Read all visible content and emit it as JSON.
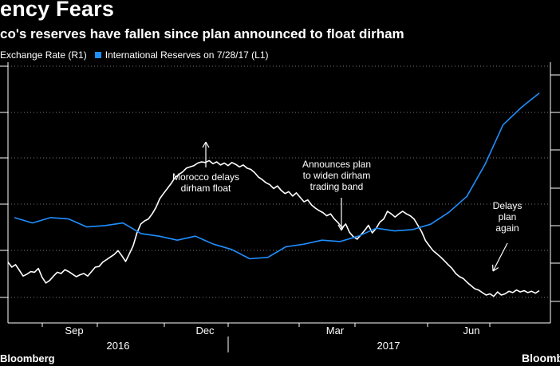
{
  "title": "ency Fears",
  "subtitle": "co's reserves have fallen since plan announced to float dirham",
  "legend": [
    {
      "label": "Exchange Rate (R1)",
      "color": "#ffffff"
    },
    {
      "label": "International Reserves on 7/28/17 (L1)",
      "color": "#1f8fff"
    }
  ],
  "brand_left": "Bloomberg",
  "brand_right": "Bloomberg",
  "annotations": [
    {
      "lines": [
        "Morocco delays",
        "dirham float"
      ]
    },
    {
      "lines": [
        "Announces plan",
        "to widen dirham",
        "trading band"
      ]
    },
    {
      "lines": [
        "Delays",
        "plan",
        "again"
      ]
    }
  ],
  "chart_data": {
    "type": "line",
    "x_ticks": [
      "Sep",
      "Dec",
      "Mar",
      "Jun"
    ],
    "x_years": [
      "2016",
      "2017"
    ],
    "series": [
      {
        "name": "Exchange Rate (R1)",
        "axis": "right",
        "color": "#ffffff",
        "x": [
          0,
          1,
          2,
          3,
          4,
          5,
          6,
          7,
          8,
          9,
          10,
          11,
          12,
          13,
          14,
          15,
          16,
          17,
          18,
          19,
          20,
          21,
          22,
          23,
          24,
          25,
          26,
          27,
          28,
          29,
          30,
          31,
          32,
          33,
          34,
          35,
          36,
          37,
          38,
          39,
          40,
          41,
          42,
          43,
          44,
          45,
          46,
          47,
          48,
          49,
          50,
          51,
          52,
          53,
          54,
          55,
          56,
          57,
          58,
          59,
          60,
          61,
          62,
          63,
          64,
          65,
          66,
          67,
          68,
          69,
          70,
          71,
          72,
          73,
          74,
          75,
          76,
          77,
          78,
          79,
          80,
          81,
          82,
          83,
          84,
          85,
          86,
          87,
          88,
          89,
          90,
          91,
          92,
          93,
          94,
          95,
          96,
          97,
          98,
          99,
          100,
          101,
          102,
          103,
          104,
          105,
          106,
          107,
          108,
          109,
          110,
          111,
          112,
          113,
          114,
          115,
          116,
          117,
          118,
          119,
          120,
          121,
          122,
          123,
          124,
          125,
          126,
          127,
          128,
          129,
          130,
          131,
          132,
          133,
          134,
          135,
          136,
          137,
          138,
          139,
          140
        ],
        "y": [
          0.62,
          0.54,
          0.58,
          0.49,
          0.4,
          0.43,
          0.47,
          0.46,
          0.52,
          0.38,
          0.29,
          0.33,
          0.4,
          0.46,
          0.44,
          0.5,
          0.47,
          0.43,
          0.39,
          0.42,
          0.44,
          0.4,
          0.47,
          0.54,
          0.55,
          0.62,
          0.66,
          0.7,
          0.74,
          0.8,
          0.72,
          0.63,
          0.75,
          0.88,
          1.08,
          1.22,
          1.27,
          1.3,
          1.38,
          1.48,
          1.62,
          1.7,
          1.78,
          1.86,
          1.95,
          2.0,
          2.04,
          2.1,
          2.12,
          2.14,
          2.18,
          2.2,
          2.19,
          2.22,
          2.17,
          2.2,
          2.15,
          2.18,
          2.14,
          2.19,
          2.16,
          2.12,
          2.15,
          2.1,
          2.08,
          2.03,
          1.96,
          1.92,
          1.87,
          1.84,
          1.78,
          1.82,
          1.75,
          1.7,
          1.73,
          1.66,
          1.71,
          1.64,
          1.57,
          1.6,
          1.52,
          1.47,
          1.43,
          1.4,
          1.35,
          1.38,
          1.3,
          1.24,
          1.16,
          1.22,
          1.09,
          1.02,
          0.98,
          1.05,
          1.12,
          1.2,
          1.08,
          1.15,
          1.25,
          1.3,
          1.42,
          1.38,
          1.33,
          1.38,
          1.42,
          1.38,
          1.35,
          1.3,
          1.2,
          1.1,
          0.96,
          0.88,
          0.8,
          0.75,
          0.7,
          0.64,
          0.58,
          0.52,
          0.44,
          0.39,
          0.36,
          0.3,
          0.25,
          0.2,
          0.18,
          0.14,
          0.1,
          0.12,
          0.08,
          0.15,
          0.1,
          0.12,
          0.16,
          0.14,
          0.18,
          0.15,
          0.17,
          0.14,
          0.16,
          0.13,
          0.17
        ]
      },
      {
        "name": "International Reserves on 7/28/17 (L1)",
        "axis": "left",
        "color": "#1f8fff",
        "x": [
          0,
          1,
          2,
          3,
          4,
          5,
          6,
          7,
          8,
          9,
          10,
          11,
          12,
          13,
          14,
          15,
          16,
          17,
          18,
          19,
          20,
          21,
          22,
          23,
          24,
          25,
          26,
          27,
          28,
          29
        ],
        "y": [
          0.62,
          0.58,
          0.62,
          0.61,
          0.55,
          0.56,
          0.58,
          0.5,
          0.48,
          0.45,
          0.48,
          0.42,
          0.38,
          0.31,
          0.32,
          0.4,
          0.42,
          0.45,
          0.44,
          0.48,
          0.54,
          0.52,
          0.53,
          0.57,
          0.66,
          0.78,
          1.02,
          1.32,
          1.45,
          1.56
        ]
      }
    ]
  }
}
